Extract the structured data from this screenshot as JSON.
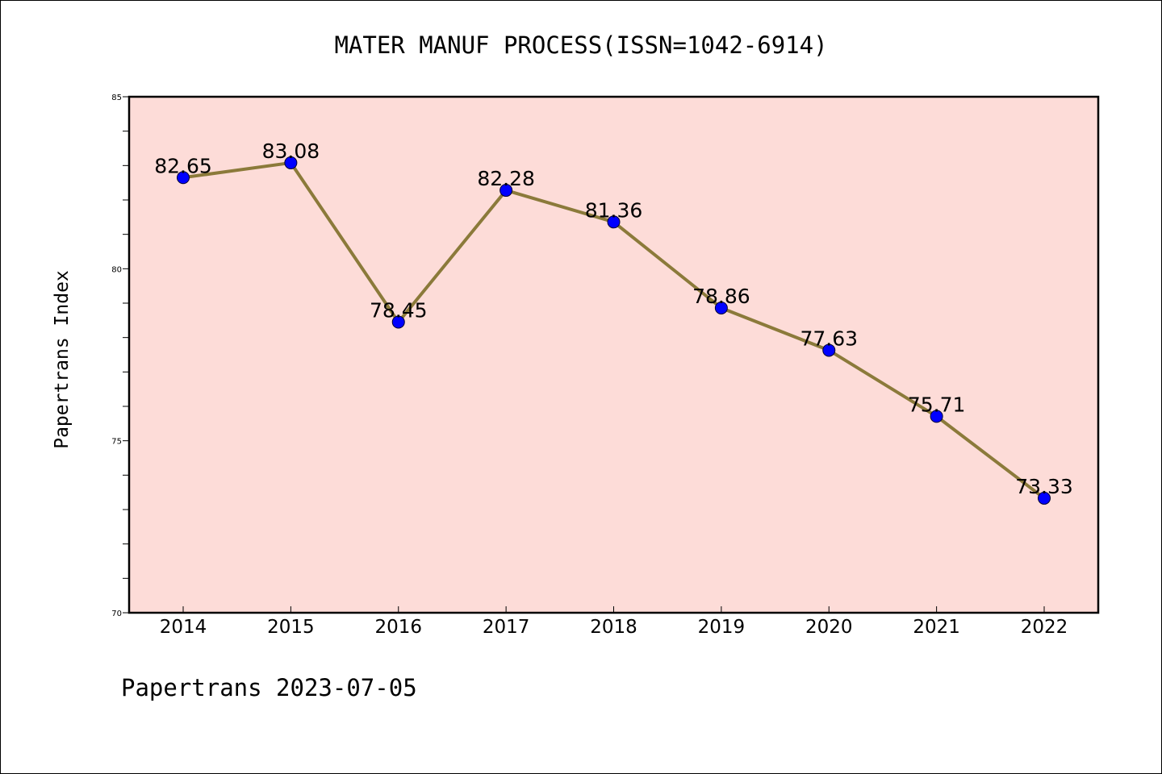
{
  "footer": "Papertrans 2023-07-05",
  "colors": {
    "plot_background": "#fddcd8",
    "line": "#8b7a3a",
    "marker": "#0000ff",
    "axis": "#000000"
  },
  "chart_data": {
    "type": "line",
    "title": "MATER MANUF PROCESS(ISSN=1042-6914)",
    "xlabel": "",
    "ylabel": "Papertrans Index",
    "categories": [
      "2014",
      "2015",
      "2016",
      "2017",
      "2018",
      "2019",
      "2020",
      "2021",
      "2022"
    ],
    "series": [
      {
        "values": [
          82.65,
          83.08,
          78.45,
          82.28,
          81.36,
          78.86,
          77.63,
          75.71,
          73.33
        ],
        "data_labels": [
          "82.65",
          "83.08",
          "78.45",
          "82.28",
          "81.36",
          "78.86",
          "77.63",
          "75.71",
          "73.33"
        ]
      }
    ],
    "ylim": [
      70,
      85
    ],
    "yticks": [
      70,
      75,
      80,
      85
    ],
    "ytick_labels": [
      "70",
      "75",
      "80",
      "85"
    ],
    "y_minor_step": 1,
    "grid": false,
    "legend": "none"
  }
}
